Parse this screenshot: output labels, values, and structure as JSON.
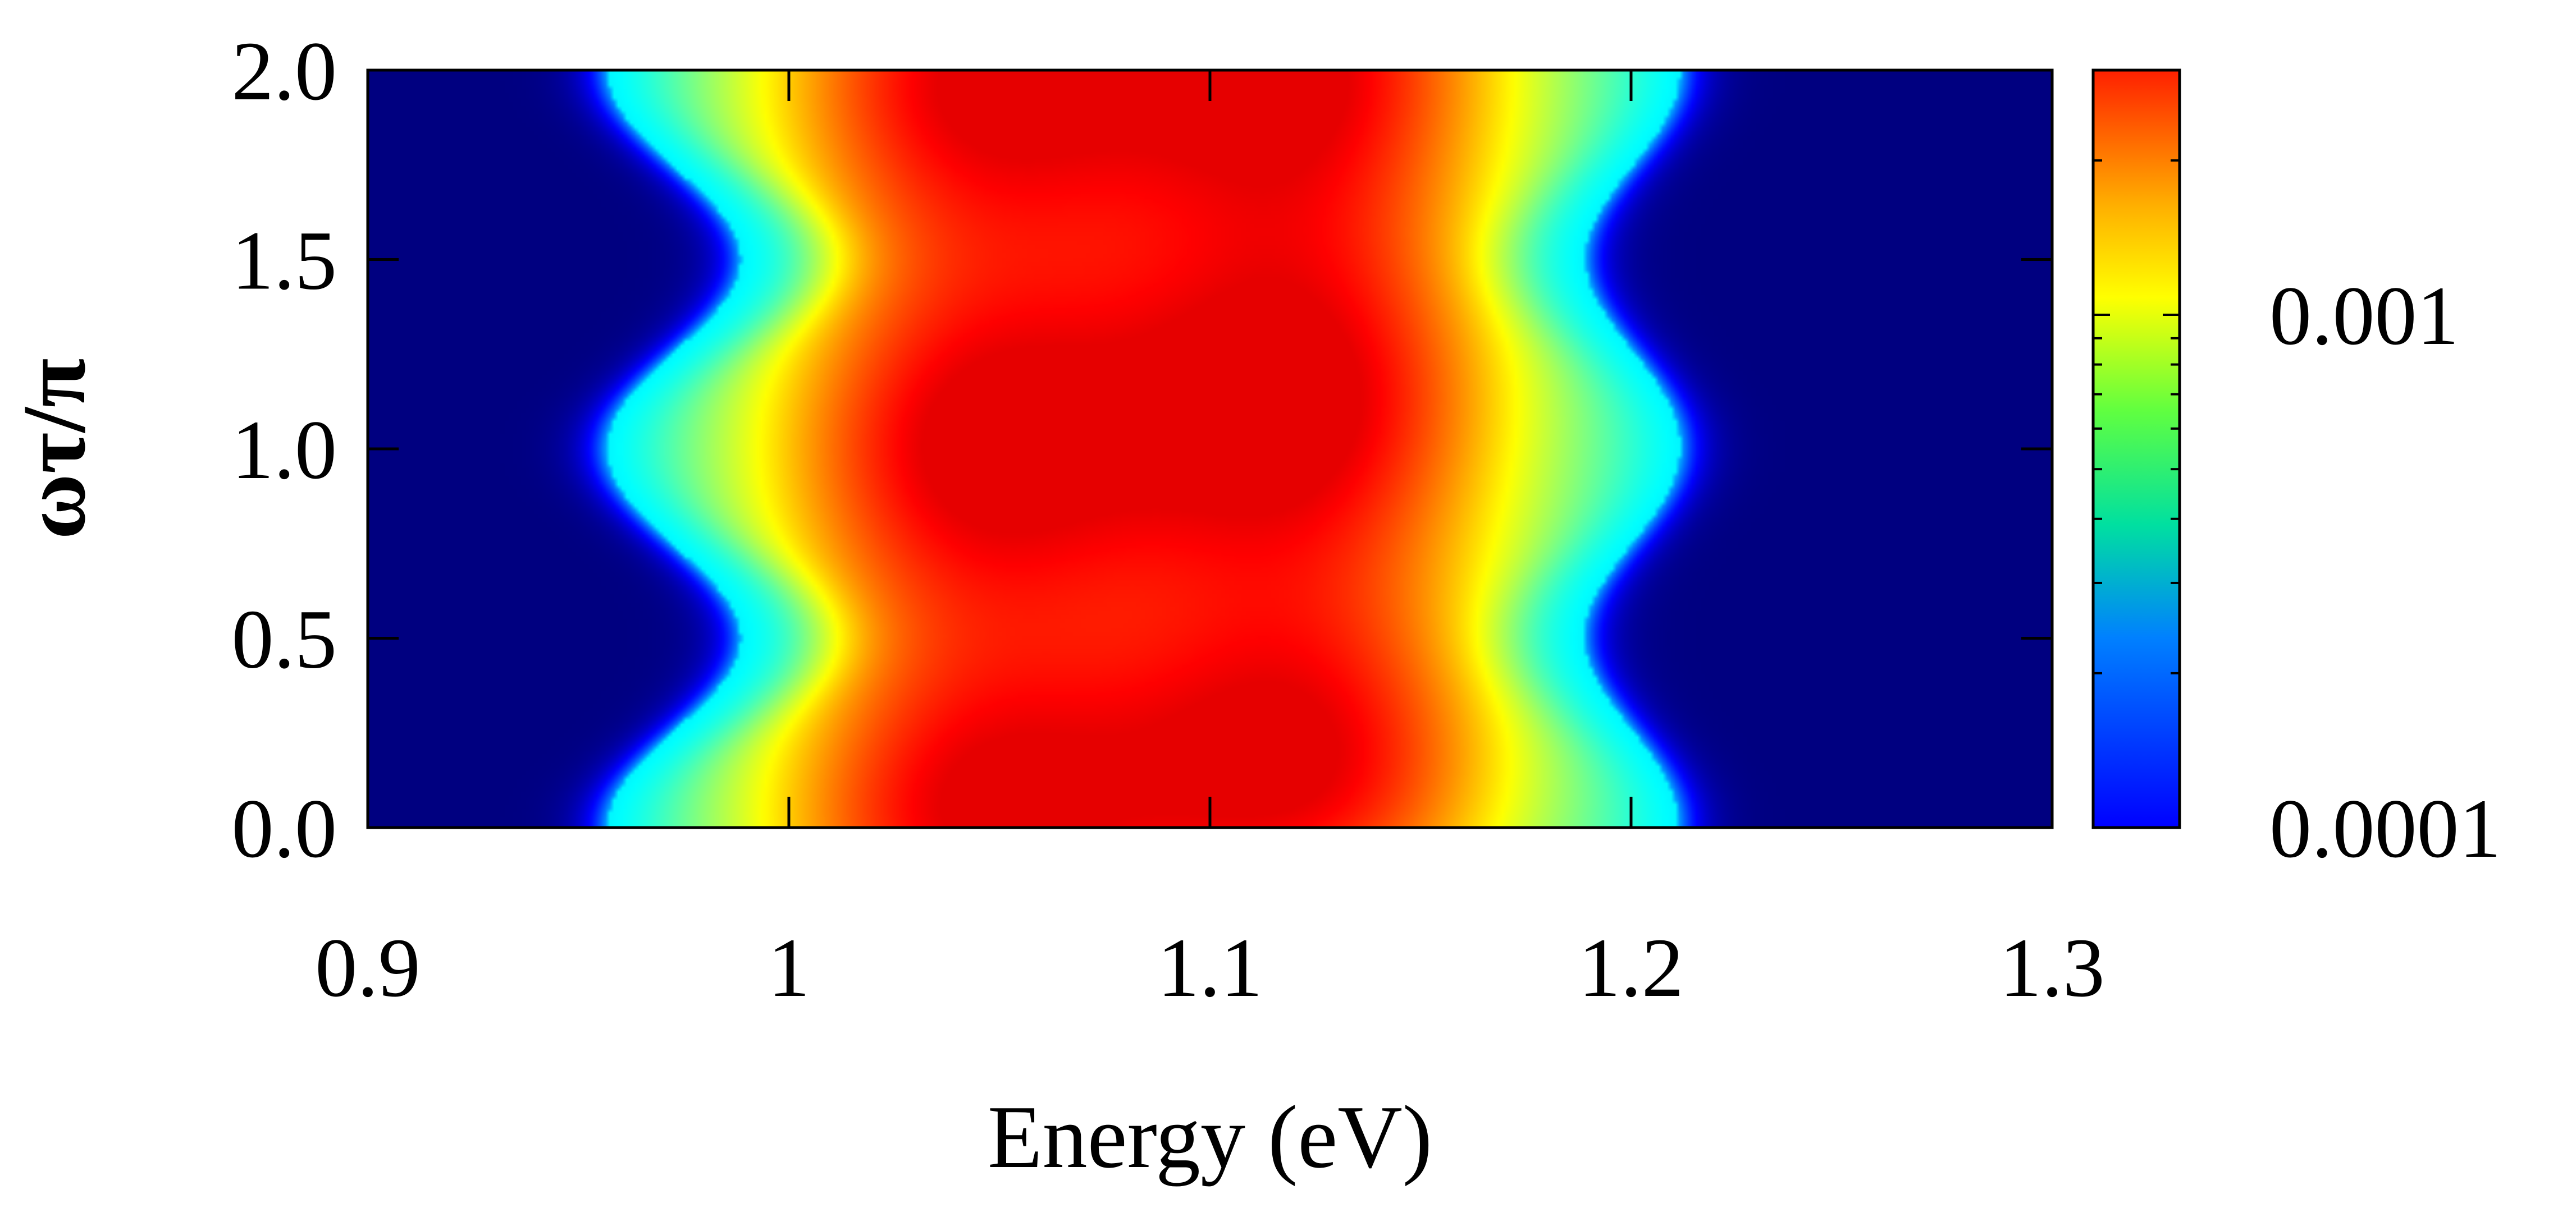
{
  "chart_data": {
    "type": "heatmap",
    "title": "",
    "xlabel": "Energy (eV)",
    "ylabel": "ωτ/π",
    "xlim": [
      0.9,
      1.3
    ],
    "ylim": [
      0.0,
      2.0
    ],
    "x_ticks": [
      0.9,
      1.0,
      1.1,
      1.2,
      1.3
    ],
    "x_tick_labels": [
      "0.9",
      "1",
      "1.1",
      "1.2",
      "1.3"
    ],
    "y_ticks": [
      0.0,
      0.5,
      1.0,
      1.5,
      2.0
    ],
    "y_tick_labels": [
      "0.0",
      "0.5",
      "1.0",
      "1.5",
      "2.0"
    ],
    "colorbar": {
      "scale": "log",
      "range": [
        0.0001,
        0.003
      ],
      "tick_values": [
        0.001,
        0.0001
      ],
      "tick_labels": [
        "0.001",
        "0.0001"
      ],
      "colormap": "jet"
    },
    "peaks": [
      {
        "energy": 1.04,
        "omega_tau_over_pi": 0.0,
        "value": 0.002
      },
      {
        "energy": 1.04,
        "omega_tau_over_pi": 1.0,
        "value": 0.0022
      },
      {
        "energy": 1.04,
        "omega_tau_over_pi": 2.0,
        "value": 0.002
      },
      {
        "energy": 1.125,
        "omega_tau_over_pi": 0.15,
        "value": 0.002
      },
      {
        "energy": 1.125,
        "omega_tau_over_pi": 1.12,
        "value": 0.0021
      },
      {
        "energy": 1.125,
        "omega_tau_over_pi": 2.05,
        "value": 0.0018
      }
    ],
    "background_value": 0.0001,
    "grid": false,
    "legend": "none"
  }
}
